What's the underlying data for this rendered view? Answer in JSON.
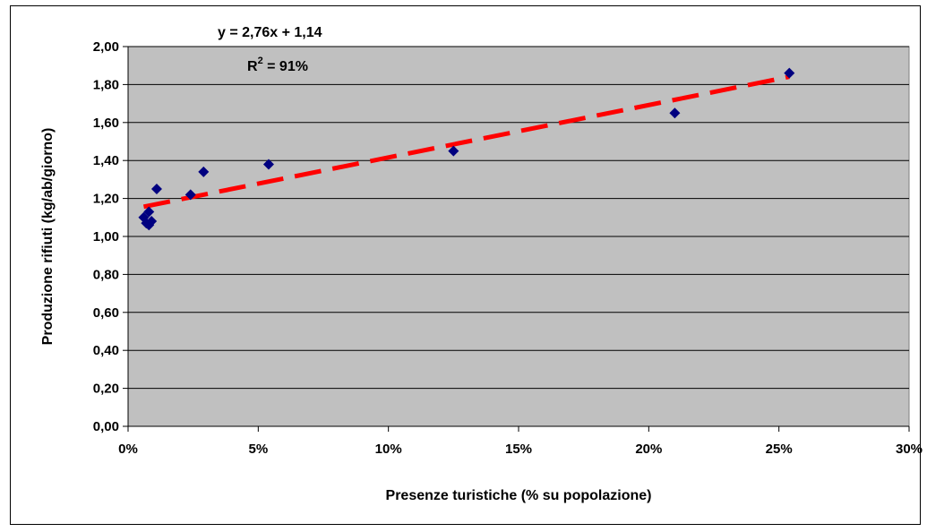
{
  "chart_data": {
    "type": "scatter",
    "title": "",
    "xlabel": "Presenze turistiche (% su popolazione)",
    "ylabel": "Produzione rifiuti (kg/ab/giorno)",
    "xlim": [
      0,
      30
    ],
    "ylim": [
      0,
      2
    ],
    "x_ticks": [
      "0%",
      "5%",
      "10%",
      "15%",
      "20%",
      "25%",
      "30%"
    ],
    "y_ticks": [
      "0,00",
      "0,20",
      "0,40",
      "0,60",
      "0,80",
      "1,00",
      "1,20",
      "1,40",
      "1,60",
      "1,80",
      "2,00"
    ],
    "grid": "horizontal",
    "plot_background": "#c0c0c0",
    "points": [
      {
        "x": 0.6,
        "y": 1.1
      },
      {
        "x": 0.7,
        "y": 1.07
      },
      {
        "x": 0.8,
        "y": 1.13
      },
      {
        "x": 0.8,
        "y": 1.06
      },
      {
        "x": 0.9,
        "y": 1.08
      },
      {
        "x": 1.1,
        "y": 1.25
      },
      {
        "x": 2.4,
        "y": 1.22
      },
      {
        "x": 2.9,
        "y": 1.34
      },
      {
        "x": 5.4,
        "y": 1.38
      },
      {
        "x": 12.5,
        "y": 1.45
      },
      {
        "x": 21.0,
        "y": 1.65
      },
      {
        "x": 25.4,
        "y": 1.86
      }
    ],
    "marker_color": "#000080",
    "trendline": {
      "slope": 2.76,
      "intercept": 1.14,
      "x_start": 0.6,
      "x_end": 25.4,
      "color": "#ff0000",
      "style": "dashed"
    },
    "annotations": {
      "equation": "y = 2,76x + 1,14",
      "r2_prefix": "R",
      "r2_sup": "2",
      "r2_suffix": " = 91%"
    }
  }
}
